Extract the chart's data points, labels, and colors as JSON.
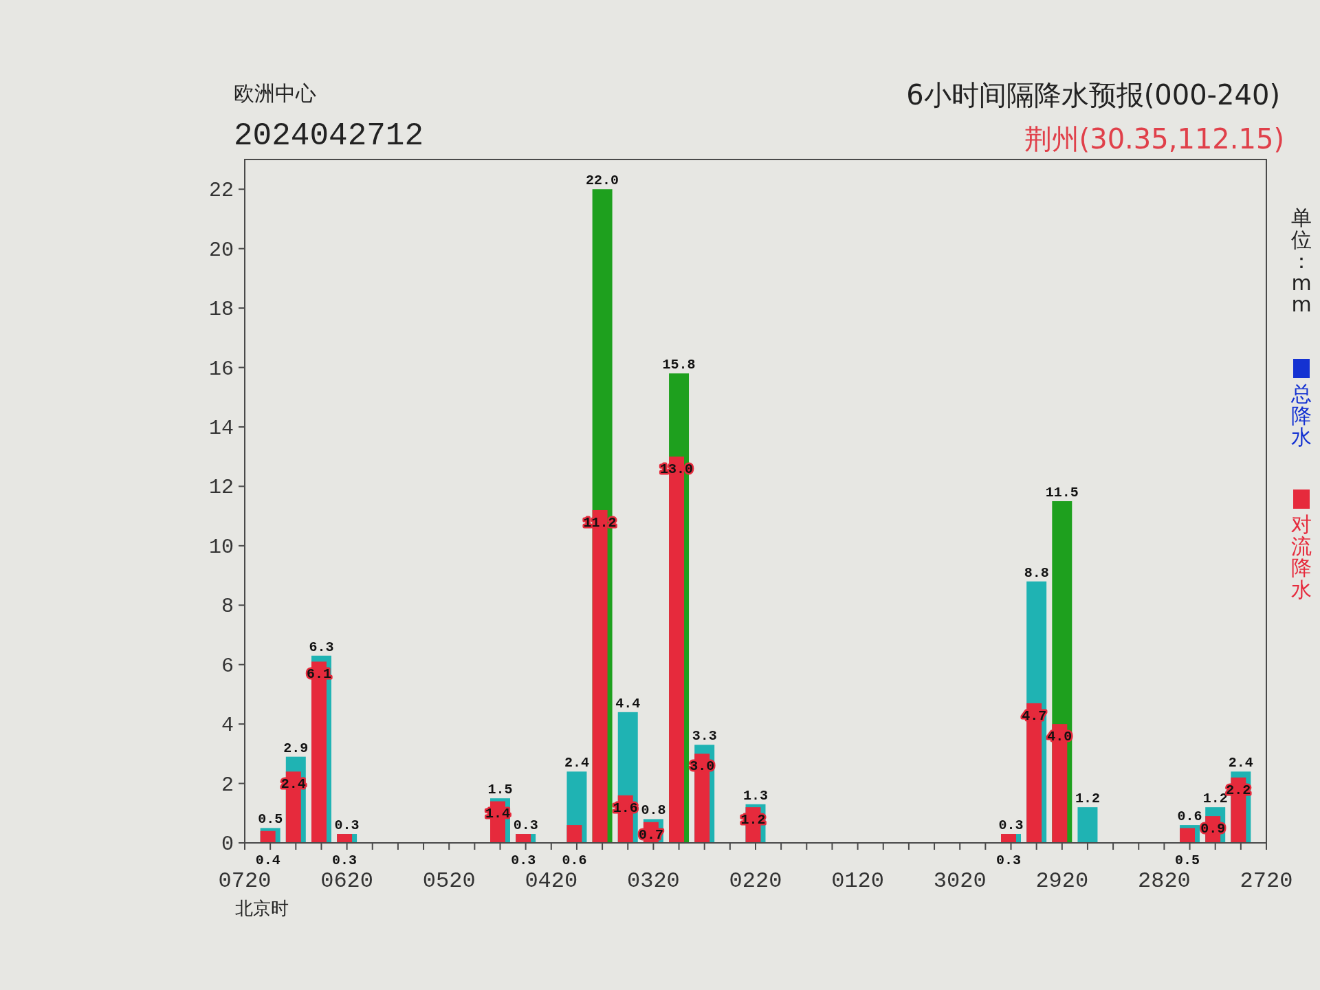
{
  "chart_data": {
    "type": "bar",
    "title": "6小时间隔降水预报(000-240)",
    "subtitle": "荆州(30.35,112.15)",
    "xlabel": "北京时",
    "annotations": [
      "欧洲中心",
      "2024042712",
      "单位：mm"
    ],
    "categories": [
      "0720",
      null,
      null,
      null,
      "0620",
      null,
      null,
      null,
      "0520",
      null,
      null,
      null,
      "0420",
      null,
      null,
      null,
      "0320",
      null,
      null,
      null,
      "0220",
      null,
      null,
      null,
      "0120",
      null,
      null,
      null,
      "3020",
      null,
      null,
      null,
      "2920",
      null,
      null,
      null,
      "2820",
      null,
      null,
      null,
      "2720"
    ],
    "series": [
      {
        "name": "总降水",
        "color": "#1432d2",
        "colors": [
          null,
          "#1fb3b3",
          "#1fb3b3",
          "#1fb3b3",
          "#1fb3b3",
          null,
          null,
          null,
          null,
          null,
          "#1fb3b3",
          "#1fb3b3",
          null,
          "#1fb3b3",
          "#1ea01e",
          "#1fb3b3",
          "#1fb3b3",
          "#1ea01e",
          "#1fb3b3",
          null,
          "#1fb3b3",
          null,
          null,
          null,
          null,
          null,
          null,
          null,
          null,
          null,
          "#1fb3b3",
          "#1fb3b3",
          "#1ea01e",
          "#1fb3b3",
          null,
          null,
          null,
          "#1fb3b3",
          "#1fb3b3",
          "#1fb3b3",
          null
        ],
        "values": [
          null,
          0.5,
          2.9,
          6.3,
          0.3,
          null,
          null,
          null,
          null,
          null,
          1.5,
          0.3,
          null,
          2.4,
          22.0,
          4.4,
          0.8,
          15.8,
          3.3,
          null,
          1.3,
          null,
          null,
          null,
          null,
          null,
          null,
          null,
          null,
          null,
          0.3,
          8.8,
          11.5,
          1.2,
          null,
          null,
          null,
          0.6,
          1.2,
          2.4,
          null
        ],
        "value_labels": [
          null,
          "0.5",
          "2.9",
          "6.3",
          "0.3",
          null,
          null,
          null,
          null,
          null,
          "1.5",
          "0.3",
          null,
          "2.4",
          "22.0",
          "4.4",
          "0.8",
          "15.8",
          "3.3",
          null,
          "1.3",
          null,
          null,
          null,
          null,
          null,
          null,
          null,
          null,
          null,
          "0.3",
          "8.8",
          "11.5",
          "1.2",
          null,
          null,
          null,
          "0.6",
          "1.2",
          "2.4",
          null
        ]
      },
      {
        "name": "对流降水",
        "color": "#e62a3c",
        "values": [
          null,
          0.4,
          2.4,
          6.1,
          0.3,
          null,
          null,
          null,
          null,
          null,
          1.4,
          0.3,
          null,
          0.6,
          11.2,
          1.6,
          0.7,
          13.0,
          3.0,
          null,
          1.2,
          null,
          null,
          null,
          null,
          null,
          null,
          null,
          null,
          null,
          0.3,
          4.7,
          4.0,
          null,
          null,
          null,
          null,
          0.5,
          0.9,
          2.2,
          null
        ],
        "value_labels": [
          null,
          "0.4",
          "2.4",
          "6.1",
          "0.3",
          null,
          null,
          null,
          null,
          null,
          "1.4",
          "0.3",
          null,
          "0.6",
          "11.2",
          "1.6",
          "0.7",
          "13.0",
          "3.0",
          null,
          "1.2",
          null,
          null,
          null,
          null,
          null,
          null,
          null,
          null,
          null,
          "0.3",
          "4.7",
          "4.0",
          null,
          null,
          null,
          null,
          "0.5",
          "0.9",
          "2.2",
          null
        ]
      }
    ],
    "ylim": [
      0,
      23
    ],
    "yticks": [
      0,
      2,
      4,
      6,
      8,
      10,
      12,
      14,
      16,
      18,
      20,
      22
    ],
    "legend": "right"
  }
}
